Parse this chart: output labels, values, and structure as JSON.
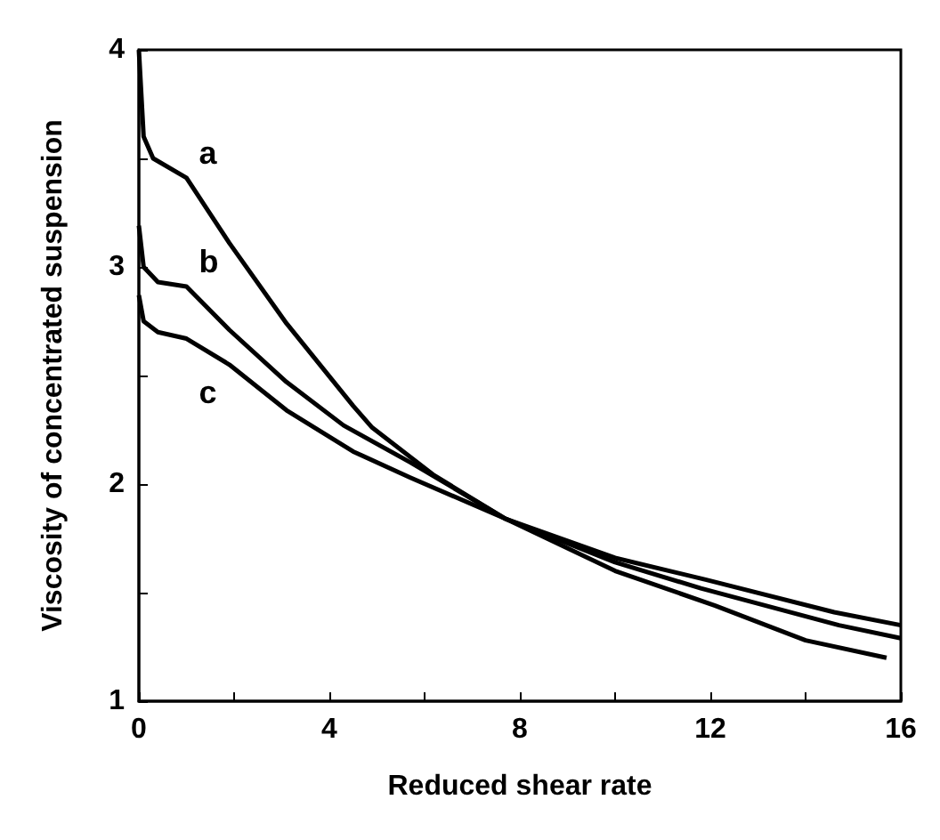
{
  "chart_data": {
    "type": "line",
    "xlabel": "Reduced shear rate",
    "ylabel": "Viscosity of concentrated suspension",
    "xlim": [
      0,
      16
    ],
    "ylim": [
      1,
      4
    ],
    "xticks": [
      0,
      {
        "value": 2,
        "label": null
      },
      4,
      {
        "value": 6,
        "label": null
      },
      8,
      {
        "value": 10,
        "label": null
      },
      12,
      {
        "value": 14,
        "label": null
      },
      16
    ],
    "yticks": [
      1,
      {
        "value": 1.5,
        "label": null
      },
      2,
      {
        "value": 2.5,
        "label": null
      },
      3,
      {
        "value": 3.5,
        "label": null
      },
      4
    ],
    "grid": false,
    "marker": "none",
    "line_style": "solid",
    "series": [
      {
        "name": "a",
        "color": "#000000",
        "x": [
          0,
          0.1,
          0.3,
          1.0,
          1.9,
          3.1,
          4.5,
          4.9,
          6.2,
          7.7,
          10,
          12.1,
          14,
          15.7
        ],
        "values": [
          4.0,
          3.6,
          3.5,
          3.41,
          3.11,
          2.74,
          2.36,
          2.26,
          2.04,
          1.84,
          1.6,
          1.44,
          1.28,
          1.2
        ]
      },
      {
        "name": "b",
        "color": "#000000",
        "x": [
          0,
          0.1,
          0.4,
          1.0,
          1.9,
          3.1,
          4.3,
          5.7,
          7.7,
          10,
          11.8,
          14.7,
          16
        ],
        "values": [
          3.19,
          3.0,
          2.93,
          2.91,
          2.71,
          2.47,
          2.27,
          2.1,
          1.84,
          1.64,
          1.52,
          1.35,
          1.29
        ]
      },
      {
        "name": "c",
        "color": "#000000",
        "x": [
          0,
          0.1,
          0.4,
          1.0,
          1.9,
          3.1,
          4.5,
          5.7,
          7.7,
          10,
          11.9,
          14.6,
          16
        ],
        "values": [
          2.87,
          2.75,
          2.7,
          2.67,
          2.55,
          2.34,
          2.15,
          2.03,
          1.84,
          1.66,
          1.56,
          1.41,
          1.35
        ]
      }
    ]
  }
}
